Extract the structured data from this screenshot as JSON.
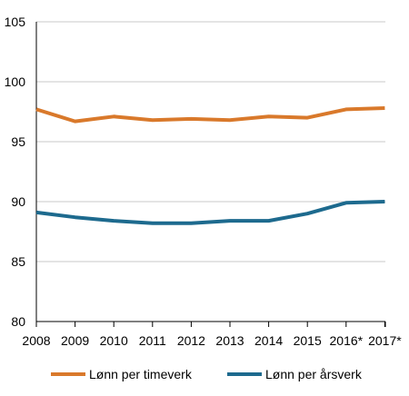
{
  "chart_data": {
    "type": "line",
    "title": "",
    "xlabel": "",
    "ylabel": "",
    "categories": [
      "2008",
      "2009",
      "2010",
      "2011",
      "2012",
      "2013",
      "2014",
      "2015",
      "2016*",
      "2017*"
    ],
    "ylim": [
      80,
      105
    ],
    "yticks": [
      80,
      85,
      90,
      95,
      100,
      105
    ],
    "grid": "horizontal",
    "legend_position": "bottom",
    "series": [
      {
        "name": "Lønn per timeverk",
        "color": "#d9792b",
        "values": [
          97.7,
          96.7,
          97.1,
          96.8,
          96.9,
          96.8,
          97.1,
          97.0,
          97.7,
          97.8
        ]
      },
      {
        "name": "Lønn per årsverk",
        "color": "#1d6a8e",
        "values": [
          89.1,
          88.7,
          88.4,
          88.2,
          88.2,
          88.4,
          88.4,
          89.0,
          89.9,
          90.0
        ]
      }
    ]
  }
}
